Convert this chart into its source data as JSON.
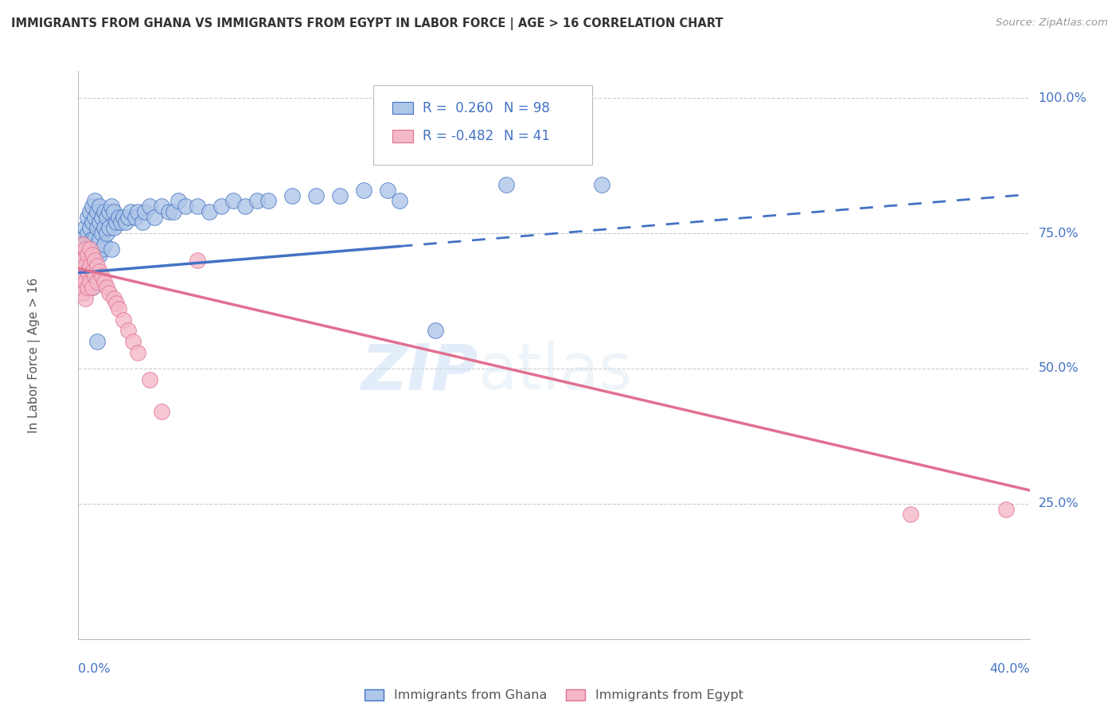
{
  "title": "IMMIGRANTS FROM GHANA VS IMMIGRANTS FROM EGYPT IN LABOR FORCE | AGE > 16 CORRELATION CHART",
  "source": "Source: ZipAtlas.com",
  "ylabel": "In Labor Force | Age > 16",
  "legend_label1": "Immigrants from Ghana",
  "legend_label2": "Immigrants from Egypt",
  "R1": 0.26,
  "N1": 98,
  "R2": -0.482,
  "N2": 41,
  "color_ghana": "#aec6e8",
  "color_ghana_line": "#4472c4",
  "color_egypt": "#f4b8c8",
  "color_egypt_line": "#e07090",
  "watermark_zip": "ZIP",
  "watermark_atlas": "atlas",
  "xlim": [
    0.0,
    0.4
  ],
  "ylim": [
    0.0,
    1.05
  ],
  "ytick_vals": [
    0.0,
    0.25,
    0.5,
    0.75,
    1.0
  ],
  "ytick_labels": [
    "",
    "25.0%",
    "50.0%",
    "75.0%",
    "100.0%"
  ],
  "ghana_solid_xend": 0.135,
  "ghana_dash_xend": 0.4,
  "ghana_line_y0": 0.677,
  "ghana_line_y1": 0.822,
  "egypt_line_y0": 0.685,
  "egypt_line_y1": 0.275,
  "ghana_x": [
    0.001,
    0.001,
    0.001,
    0.001,
    0.002,
    0.002,
    0.002,
    0.002,
    0.002,
    0.002,
    0.002,
    0.003,
    0.003,
    0.003,
    0.003,
    0.003,
    0.003,
    0.003,
    0.004,
    0.004,
    0.004,
    0.004,
    0.004,
    0.004,
    0.004,
    0.005,
    0.005,
    0.005,
    0.005,
    0.005,
    0.005,
    0.006,
    0.006,
    0.006,
    0.006,
    0.006,
    0.006,
    0.007,
    0.007,
    0.007,
    0.007,
    0.007,
    0.008,
    0.008,
    0.008,
    0.008,
    0.009,
    0.009,
    0.009,
    0.009,
    0.01,
    0.01,
    0.01,
    0.011,
    0.011,
    0.011,
    0.012,
    0.012,
    0.013,
    0.013,
    0.014,
    0.014,
    0.015,
    0.015,
    0.016,
    0.017,
    0.018,
    0.019,
    0.02,
    0.021,
    0.022,
    0.024,
    0.025,
    0.027,
    0.028,
    0.03,
    0.032,
    0.035,
    0.038,
    0.04,
    0.042,
    0.045,
    0.05,
    0.055,
    0.06,
    0.065,
    0.07,
    0.075,
    0.08,
    0.09,
    0.1,
    0.11,
    0.12,
    0.13,
    0.135,
    0.15,
    0.18,
    0.22
  ],
  "ghana_y": [
    0.7,
    0.68,
    0.65,
    0.72,
    0.74,
    0.71,
    0.68,
    0.66,
    0.64,
    0.73,
    0.7,
    0.76,
    0.73,
    0.7,
    0.68,
    0.65,
    0.72,
    0.69,
    0.78,
    0.75,
    0.72,
    0.7,
    0.67,
    0.65,
    0.73,
    0.79,
    0.76,
    0.73,
    0.7,
    0.68,
    0.65,
    0.8,
    0.77,
    0.74,
    0.71,
    0.68,
    0.65,
    0.81,
    0.78,
    0.74,
    0.71,
    0.68,
    0.79,
    0.76,
    0.73,
    0.55,
    0.8,
    0.77,
    0.74,
    0.71,
    0.78,
    0.75,
    0.72,
    0.79,
    0.76,
    0.73,
    0.78,
    0.75,
    0.79,
    0.76,
    0.8,
    0.72,
    0.79,
    0.76,
    0.77,
    0.78,
    0.77,
    0.78,
    0.77,
    0.78,
    0.79,
    0.78,
    0.79,
    0.77,
    0.79,
    0.8,
    0.78,
    0.8,
    0.79,
    0.79,
    0.81,
    0.8,
    0.8,
    0.79,
    0.8,
    0.81,
    0.8,
    0.81,
    0.81,
    0.82,
    0.82,
    0.82,
    0.83,
    0.83,
    0.81,
    0.57,
    0.84,
    0.84
  ],
  "egypt_x": [
    0.001,
    0.001,
    0.001,
    0.002,
    0.002,
    0.002,
    0.002,
    0.003,
    0.003,
    0.003,
    0.003,
    0.004,
    0.004,
    0.004,
    0.005,
    0.005,
    0.005,
    0.006,
    0.006,
    0.006,
    0.007,
    0.007,
    0.008,
    0.008,
    0.009,
    0.01,
    0.011,
    0.012,
    0.013,
    0.015,
    0.016,
    0.017,
    0.019,
    0.021,
    0.023,
    0.025,
    0.03,
    0.05,
    0.35,
    0.39,
    0.035
  ],
  "egypt_y": [
    0.7,
    0.68,
    0.65,
    0.73,
    0.7,
    0.67,
    0.64,
    0.72,
    0.69,
    0.66,
    0.63,
    0.71,
    0.68,
    0.65,
    0.72,
    0.69,
    0.66,
    0.71,
    0.68,
    0.65,
    0.7,
    0.67,
    0.69,
    0.66,
    0.68,
    0.67,
    0.66,
    0.65,
    0.64,
    0.63,
    0.62,
    0.61,
    0.59,
    0.57,
    0.55,
    0.53,
    0.48,
    0.7,
    0.23,
    0.24,
    0.42
  ]
}
